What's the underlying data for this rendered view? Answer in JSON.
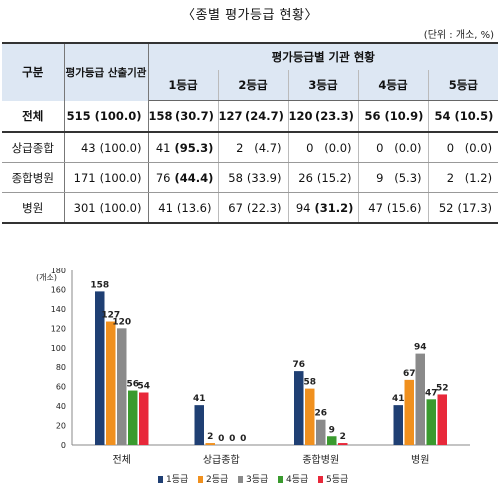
{
  "title": "〈종별 평가등급 현황〉",
  "unit": "(단위 : 개소, %)",
  "table": {
    "col_type": "구분",
    "col_total": "평가등급 산출기관",
    "grade_group": "평가등급별 기관 현황",
    "grades": [
      "1등급",
      "2등급",
      "3등급",
      "4등급",
      "5등급"
    ],
    "rows": [
      {
        "label": "전체",
        "total_n": "515",
        "total_p": "(100.0)",
        "cells": [
          [
            "158",
            "(30.7)"
          ],
          [
            "127",
            "(24.7)"
          ],
          [
            "120",
            "(23.3)"
          ],
          [
            "56",
            "(10.9)"
          ],
          [
            "54",
            "(10.5)"
          ]
        ]
      },
      {
        "label": "상급종합",
        "total_n": "43",
        "total_p": "(100.0)",
        "cells": [
          [
            "41",
            "(95.3)"
          ],
          [
            "2",
            "(4.7)"
          ],
          [
            "0",
            "(0.0)"
          ],
          [
            "0",
            "(0.0)"
          ],
          [
            "0",
            "(0.0)"
          ]
        ]
      },
      {
        "label": "종합병원",
        "total_n": "171",
        "total_p": "(100.0)",
        "cells": [
          [
            "76",
            "(44.4)"
          ],
          [
            "58",
            "(33.9)"
          ],
          [
            "26",
            "(15.2)"
          ],
          [
            "9",
            "(5.3)"
          ],
          [
            "2",
            "(1.2)"
          ]
        ]
      },
      {
        "label": "병원",
        "total_n": "301",
        "total_p": "(100.0)",
        "cells": [
          [
            "41",
            "(13.6)"
          ],
          [
            "67",
            "(22.3)"
          ],
          [
            "94",
            "(31.2)"
          ],
          [
            "47",
            "(15.6)"
          ],
          [
            "52",
            "(17.3)"
          ]
        ]
      }
    ]
  },
  "chart_data": {
    "type": "bar",
    "ylabel": "(개소)",
    "ylim": [
      0,
      180
    ],
    "yticks": [
      0,
      20,
      40,
      60,
      80,
      100,
      120,
      140,
      160,
      180
    ],
    "categories": [
      "전체",
      "상급종합",
      "종합병원",
      "병원"
    ],
    "series": [
      {
        "name": "1등급",
        "color": "#1f3f73",
        "values": [
          158,
          41,
          76,
          41
        ]
      },
      {
        "name": "2등급",
        "color": "#f0901e",
        "values": [
          127,
          2,
          58,
          67
        ]
      },
      {
        "name": "3등급",
        "color": "#8a8a8a",
        "values": [
          120,
          0,
          26,
          94
        ]
      },
      {
        "name": "4등급",
        "color": "#3a9a2e",
        "values": [
          56,
          0,
          9,
          47
        ]
      },
      {
        "name": "5등급",
        "color": "#e8283a",
        "values": [
          54,
          0,
          2,
          52
        ]
      }
    ],
    "legend_position": "bottom",
    "grid": false
  }
}
